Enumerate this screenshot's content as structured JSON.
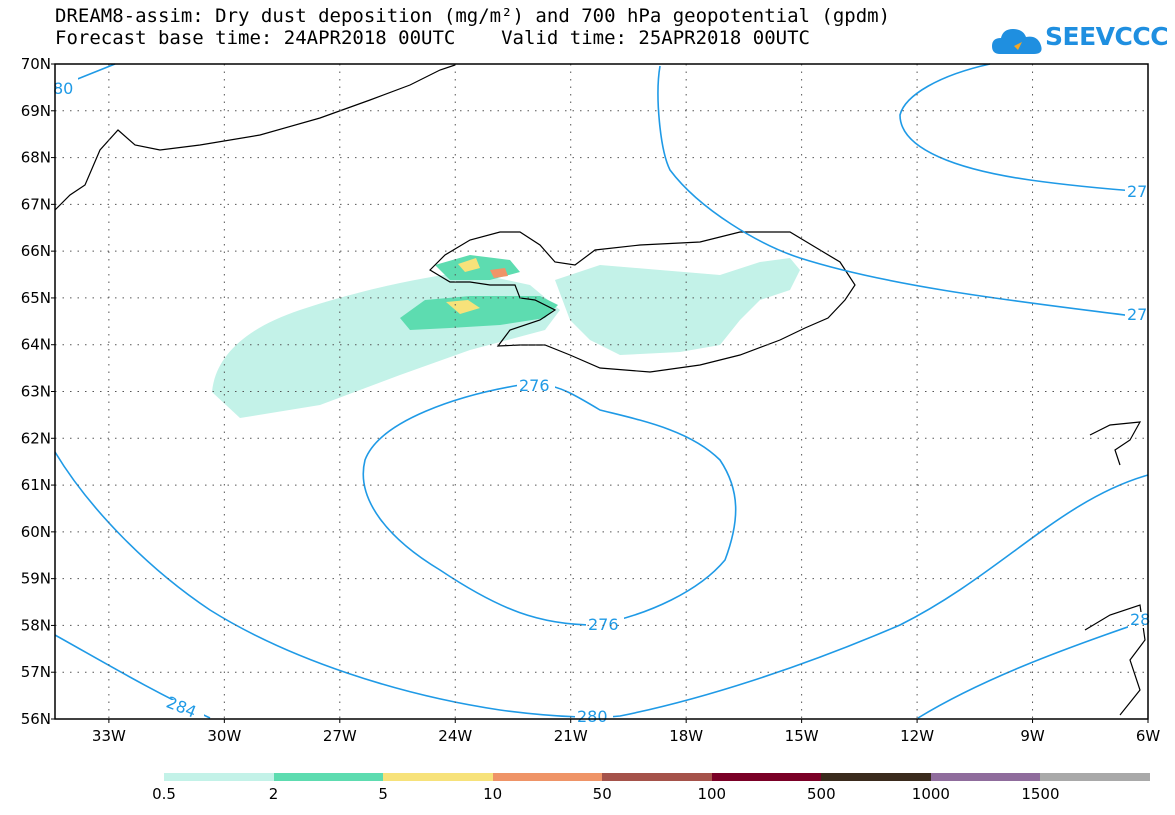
{
  "title": {
    "line1": "DREAM8-assim: Dry dust deposition (mg/m²) and 700 hPa geopotential (gpdm)",
    "line2": "Forecast base time: 24APR2018 00UTC    Valid time: 25APR2018 00UTC"
  },
  "brand": {
    "name": "SEEVCCC",
    "icon": "cloud-logo-icon",
    "color": "#1f8fe0"
  },
  "map": {
    "lat_labels": [
      "70N",
      "69N",
      "68N",
      "67N",
      "66N",
      "65N",
      "64N",
      "63N",
      "62N",
      "61N",
      "60N",
      "59N",
      "58N",
      "57N",
      "56N"
    ],
    "lon_labels": [
      "33W",
      "30W",
      "27W",
      "24W",
      "21W",
      "18W",
      "15W",
      "12W",
      "9W",
      "6W"
    ],
    "contour_labels": [
      "80",
      "276",
      "276",
      "280",
      "284",
      "27",
      "27",
      "28"
    ],
    "contour_color": "#1f9ae6",
    "coastline_color": "#000000"
  },
  "legend": {
    "colors": [
      "#c3f2e8",
      "#5ddcb0",
      "#f7e27a",
      "#ef9467",
      "#a5524a",
      "#7a0026",
      "#3a2a1c",
      "#8f6c9c",
      "#a9a9a9"
    ],
    "labels": [
      "0.5",
      "2",
      "5",
      "10",
      "50",
      "100",
      "500",
      "1000",
      "1500"
    ]
  }
}
